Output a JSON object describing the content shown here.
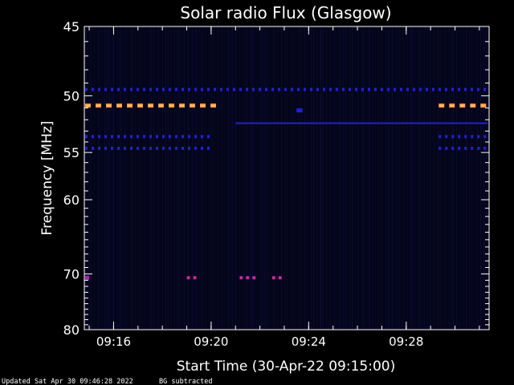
{
  "chart_data": {
    "type": "heatmap",
    "title": "Solar radio Flux (Glasgow)",
    "xlabel": "Start Time (30-Apr-22 09:15:00)",
    "ylabel": "Frequency [MHz]",
    "x_range": [
      "09:14:48",
      "09:31:24"
    ],
    "ylim": [
      45,
      80
    ],
    "y_scale": "reciprocal",
    "x_ticks": [
      "09:16",
      "09:20",
      "09:24",
      "09:28"
    ],
    "y_ticks": [
      45,
      50,
      55,
      60,
      70,
      80
    ],
    "colors": {
      "background": "#05051a",
      "weak": "#2020d8",
      "medium": "#b020c0",
      "strong": "#ff3c20",
      "hot": "#ff9a40"
    },
    "bands": [
      {
        "freq": 49.5,
        "start": "09:14:50",
        "end": "09:31:20",
        "level": "weak",
        "style": "dashed"
      },
      {
        "freq": 50.8,
        "start": "09:14:50",
        "end": "09:20:00",
        "level": "hot",
        "style": "dashed"
      },
      {
        "freq": 50.8,
        "start": "09:29:20",
        "end": "09:31:20",
        "level": "hot",
        "style": "dashed"
      },
      {
        "freq": 51.2,
        "start": "09:23:30",
        "end": "09:23:45",
        "level": "weak",
        "style": "dot"
      },
      {
        "freq": 52.3,
        "start": "09:21:00",
        "end": "09:31:20",
        "level": "weak",
        "style": "solid"
      },
      {
        "freq": 53.5,
        "start": "09:14:50",
        "end": "09:20:00",
        "level": "weak",
        "style": "dashed"
      },
      {
        "freq": 53.5,
        "start": "09:29:20",
        "end": "09:31:20",
        "level": "weak",
        "style": "dashed"
      },
      {
        "freq": 54.6,
        "start": "09:14:50",
        "end": "09:20:00",
        "level": "weak",
        "style": "dashed"
      },
      {
        "freq": 54.6,
        "start": "09:29:20",
        "end": "09:31:20",
        "level": "weak",
        "style": "dashed"
      },
      {
        "freq": 70.6,
        "start": "09:14:50",
        "end": "09:15:00",
        "level": "medium",
        "style": "dot"
      },
      {
        "freq": 70.6,
        "start": "09:19:00",
        "end": "09:19:30",
        "level": "medium",
        "style": "dashed"
      },
      {
        "freq": 70.6,
        "start": "09:21:10",
        "end": "09:21:50",
        "level": "medium",
        "style": "dashed"
      },
      {
        "freq": 70.6,
        "start": "09:22:30",
        "end": "09:23:00",
        "level": "medium",
        "style": "dashed"
      }
    ]
  },
  "footer": {
    "updated": "Updated Sat Apr 30 09:46:28 2022",
    "note": "BG subtracted"
  }
}
